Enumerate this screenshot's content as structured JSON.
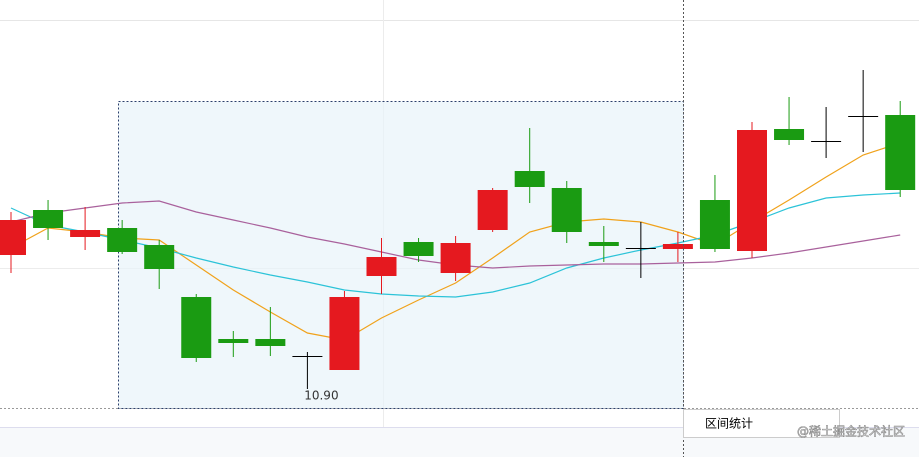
{
  "chart_data": {
    "type": "candlestick",
    "open": [
      12.24,
      12.69,
      12.42,
      12.51,
      12.34,
      11.82,
      11.4,
      11.4,
      11.23,
      11.09,
      12.03,
      12.37,
      12.06,
      12.49,
      13.08,
      12.91,
      12.37,
      12.31,
      12.3,
      12.79,
      12.28,
      13.5,
      13.38,
      13.63,
      13.64
    ],
    "high": [
      12.67,
      12.79,
      12.72,
      12.59,
      12.39,
      11.85,
      11.48,
      11.72,
      11.27,
      11.88,
      12.41,
      12.41,
      12.43,
      12.91,
      13.51,
      12.98,
      12.53,
      12.57,
      12.47,
      13.04,
      13.57,
      13.82,
      13.72,
      14.09,
      13.78
    ],
    "low": [
      12.06,
      12.39,
      12.29,
      12.25,
      11.9,
      11.17,
      11.22,
      11.23,
      10.9,
      11.09,
      11.85,
      12.17,
      11.98,
      12.47,
      12.76,
      12.36,
      12.17,
      12.01,
      12.17,
      12.27,
      12.21,
      13.34,
      13.21,
      13.27,
      12.82
    ],
    "close": [
      12.59,
      12.51,
      12.49,
      12.27,
      12.1,
      11.21,
      11.36,
      11.33,
      11.23,
      11.82,
      12.22,
      12.23,
      12.36,
      12.89,
      12.92,
      12.47,
      12.33,
      12.31,
      12.35,
      12.3,
      13.49,
      13.39,
      13.38,
      13.63,
      12.89
    ],
    "up_color": "#e5191f",
    "down_color": "#1a9b12",
    "flat_color": "#000000",
    "series": [
      {
        "color": "#f0a21b",
        "values": [
          12.31,
          12.51,
          12.47,
          12.41,
          12.39,
          12.14,
          11.89,
          11.67,
          11.46,
          11.39,
          11.61,
          11.79,
          11.96,
          12.21,
          12.47,
          12.57,
          12.6,
          12.57,
          12.47,
          12.34,
          12.57,
          12.79,
          13.02,
          13.24,
          13.36
        ]
      },
      {
        "color": "#2cc3d8",
        "values": [
          12.71,
          12.54,
          12.47,
          12.39,
          12.31,
          12.21,
          12.12,
          12.04,
          11.97,
          11.89,
          11.85,
          11.83,
          11.82,
          11.87,
          11.96,
          12.11,
          12.21,
          12.29,
          12.36,
          12.44,
          12.57,
          12.71,
          12.81,
          12.84,
          12.86
        ]
      },
      {
        "color": "#a9619c",
        "values": [
          12.57,
          12.66,
          12.71,
          12.76,
          12.78,
          12.67,
          12.59,
          12.51,
          12.42,
          12.35,
          12.27,
          12.19,
          12.14,
          12.11,
          12.13,
          12.14,
          12.15,
          12.15,
          12.16,
          12.17,
          12.21,
          12.26,
          12.32,
          12.38,
          12.44
        ]
      }
    ],
    "ylim": [
      10.22,
      14.79
    ],
    "min_label": "10.90"
  },
  "ui": {
    "button": "区间统计",
    "watermark": "@稀土掘金技术社区"
  }
}
